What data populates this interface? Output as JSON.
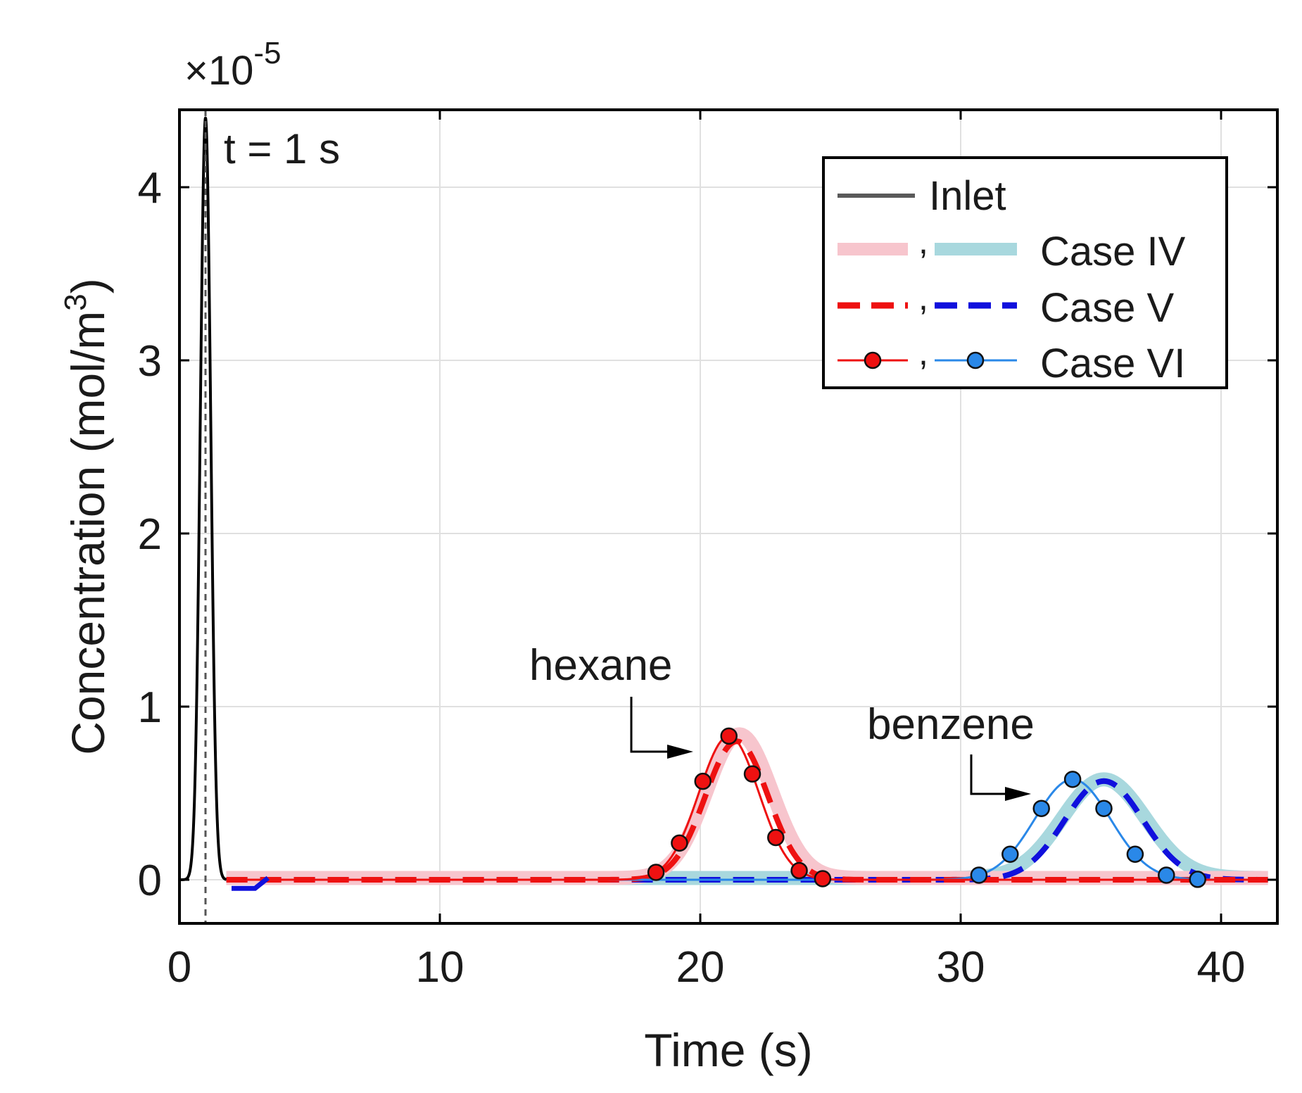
{
  "chart_data": {
    "type": "line",
    "title": "",
    "xlabel": "Time (s)",
    "ylabel": "Concentration (mol/m",
    "ylabel_sup": "3",
    "ylabel_tail": ")",
    "exponent_times": "×10",
    "exponent_power": "-5",
    "xlim": [
      0,
      42
    ],
    "ylim": [
      -0.25,
      4.5
    ],
    "xticks": [
      0,
      10,
      20,
      30,
      40
    ],
    "xtick_labels": [
      "0",
      "10",
      "20",
      "30",
      "40"
    ],
    "yticks": [
      0,
      1,
      2,
      3,
      4
    ],
    "ytick_labels": [
      "0",
      "1",
      "2",
      "3",
      "4"
    ],
    "grid": true,
    "annotations": {
      "time_marker": "t = 1 s",
      "time_marker_x": 1,
      "hexane": "hexane",
      "benzene": "benzene"
    },
    "legend": {
      "position": "top-right",
      "inlet": "Inlet",
      "comma": ",",
      "case_iv": "Case IV",
      "case_v": "Case V",
      "case_vi": "Case VI"
    },
    "colors": {
      "inlet": "#000000",
      "inlet_legend": "#5a5a5a",
      "hexane_iv": "#f7c5cd",
      "benzene_iv": "#a8d8de",
      "hexane_v": "#ee1111",
      "benzene_v": "#1010dd",
      "hexane_vi": "#ee1111",
      "benzene_vi": "#2a88e8",
      "marker_edge": "#111111",
      "grid": "#e0e0e0",
      "axes": "#000000"
    },
    "series": [
      {
        "name": "Inlet",
        "type": "gaussian-pulse",
        "center": 1.0,
        "peak": 4.4,
        "sigma": 0.2,
        "x_range": [
          0,
          1.8
        ]
      },
      {
        "name": "hexane Case IV",
        "type": "gaussian-pulse",
        "center": 21.5,
        "peak": 0.83,
        "sigma": 1.25,
        "baseline": 0.01,
        "x_range": [
          1.8,
          41.8
        ]
      },
      {
        "name": "benzene Case IV",
        "type": "gaussian-pulse",
        "center": 35.5,
        "peak": 0.57,
        "sigma": 1.6,
        "baseline": 0.01,
        "x_range": [
          1.8,
          41.8
        ]
      },
      {
        "name": "hexane Case V",
        "type": "gaussian-pulse",
        "center": 21.4,
        "peak": 0.8,
        "sigma": 1.2,
        "x_range": [
          1.8,
          41.8
        ]
      },
      {
        "name": "benzene Case V",
        "type": "gaussian-pulse",
        "center": 35.5,
        "peak": 0.57,
        "sigma": 1.5,
        "x_range": [
          1.8,
          41.8
        ]
      },
      {
        "name": "hexane Case VI",
        "type": "gaussian-pulse",
        "center": 21.1,
        "peak": 0.83,
        "sigma": 1.15,
        "x_range": [
          1.8,
          41.8
        ],
        "markers_x": [
          18.3,
          19.2,
          20.1,
          21.1,
          22.0,
          22.9,
          23.8,
          24.7
        ]
      },
      {
        "name": "benzene Case VI",
        "type": "gaussian-pulse",
        "center": 34.3,
        "peak": 0.58,
        "sigma": 1.45,
        "x_range": [
          1.8,
          41.8
        ],
        "markers_x": [
          30.7,
          31.9,
          33.1,
          34.3,
          35.5,
          36.7,
          37.9,
          39.1
        ]
      }
    ]
  }
}
